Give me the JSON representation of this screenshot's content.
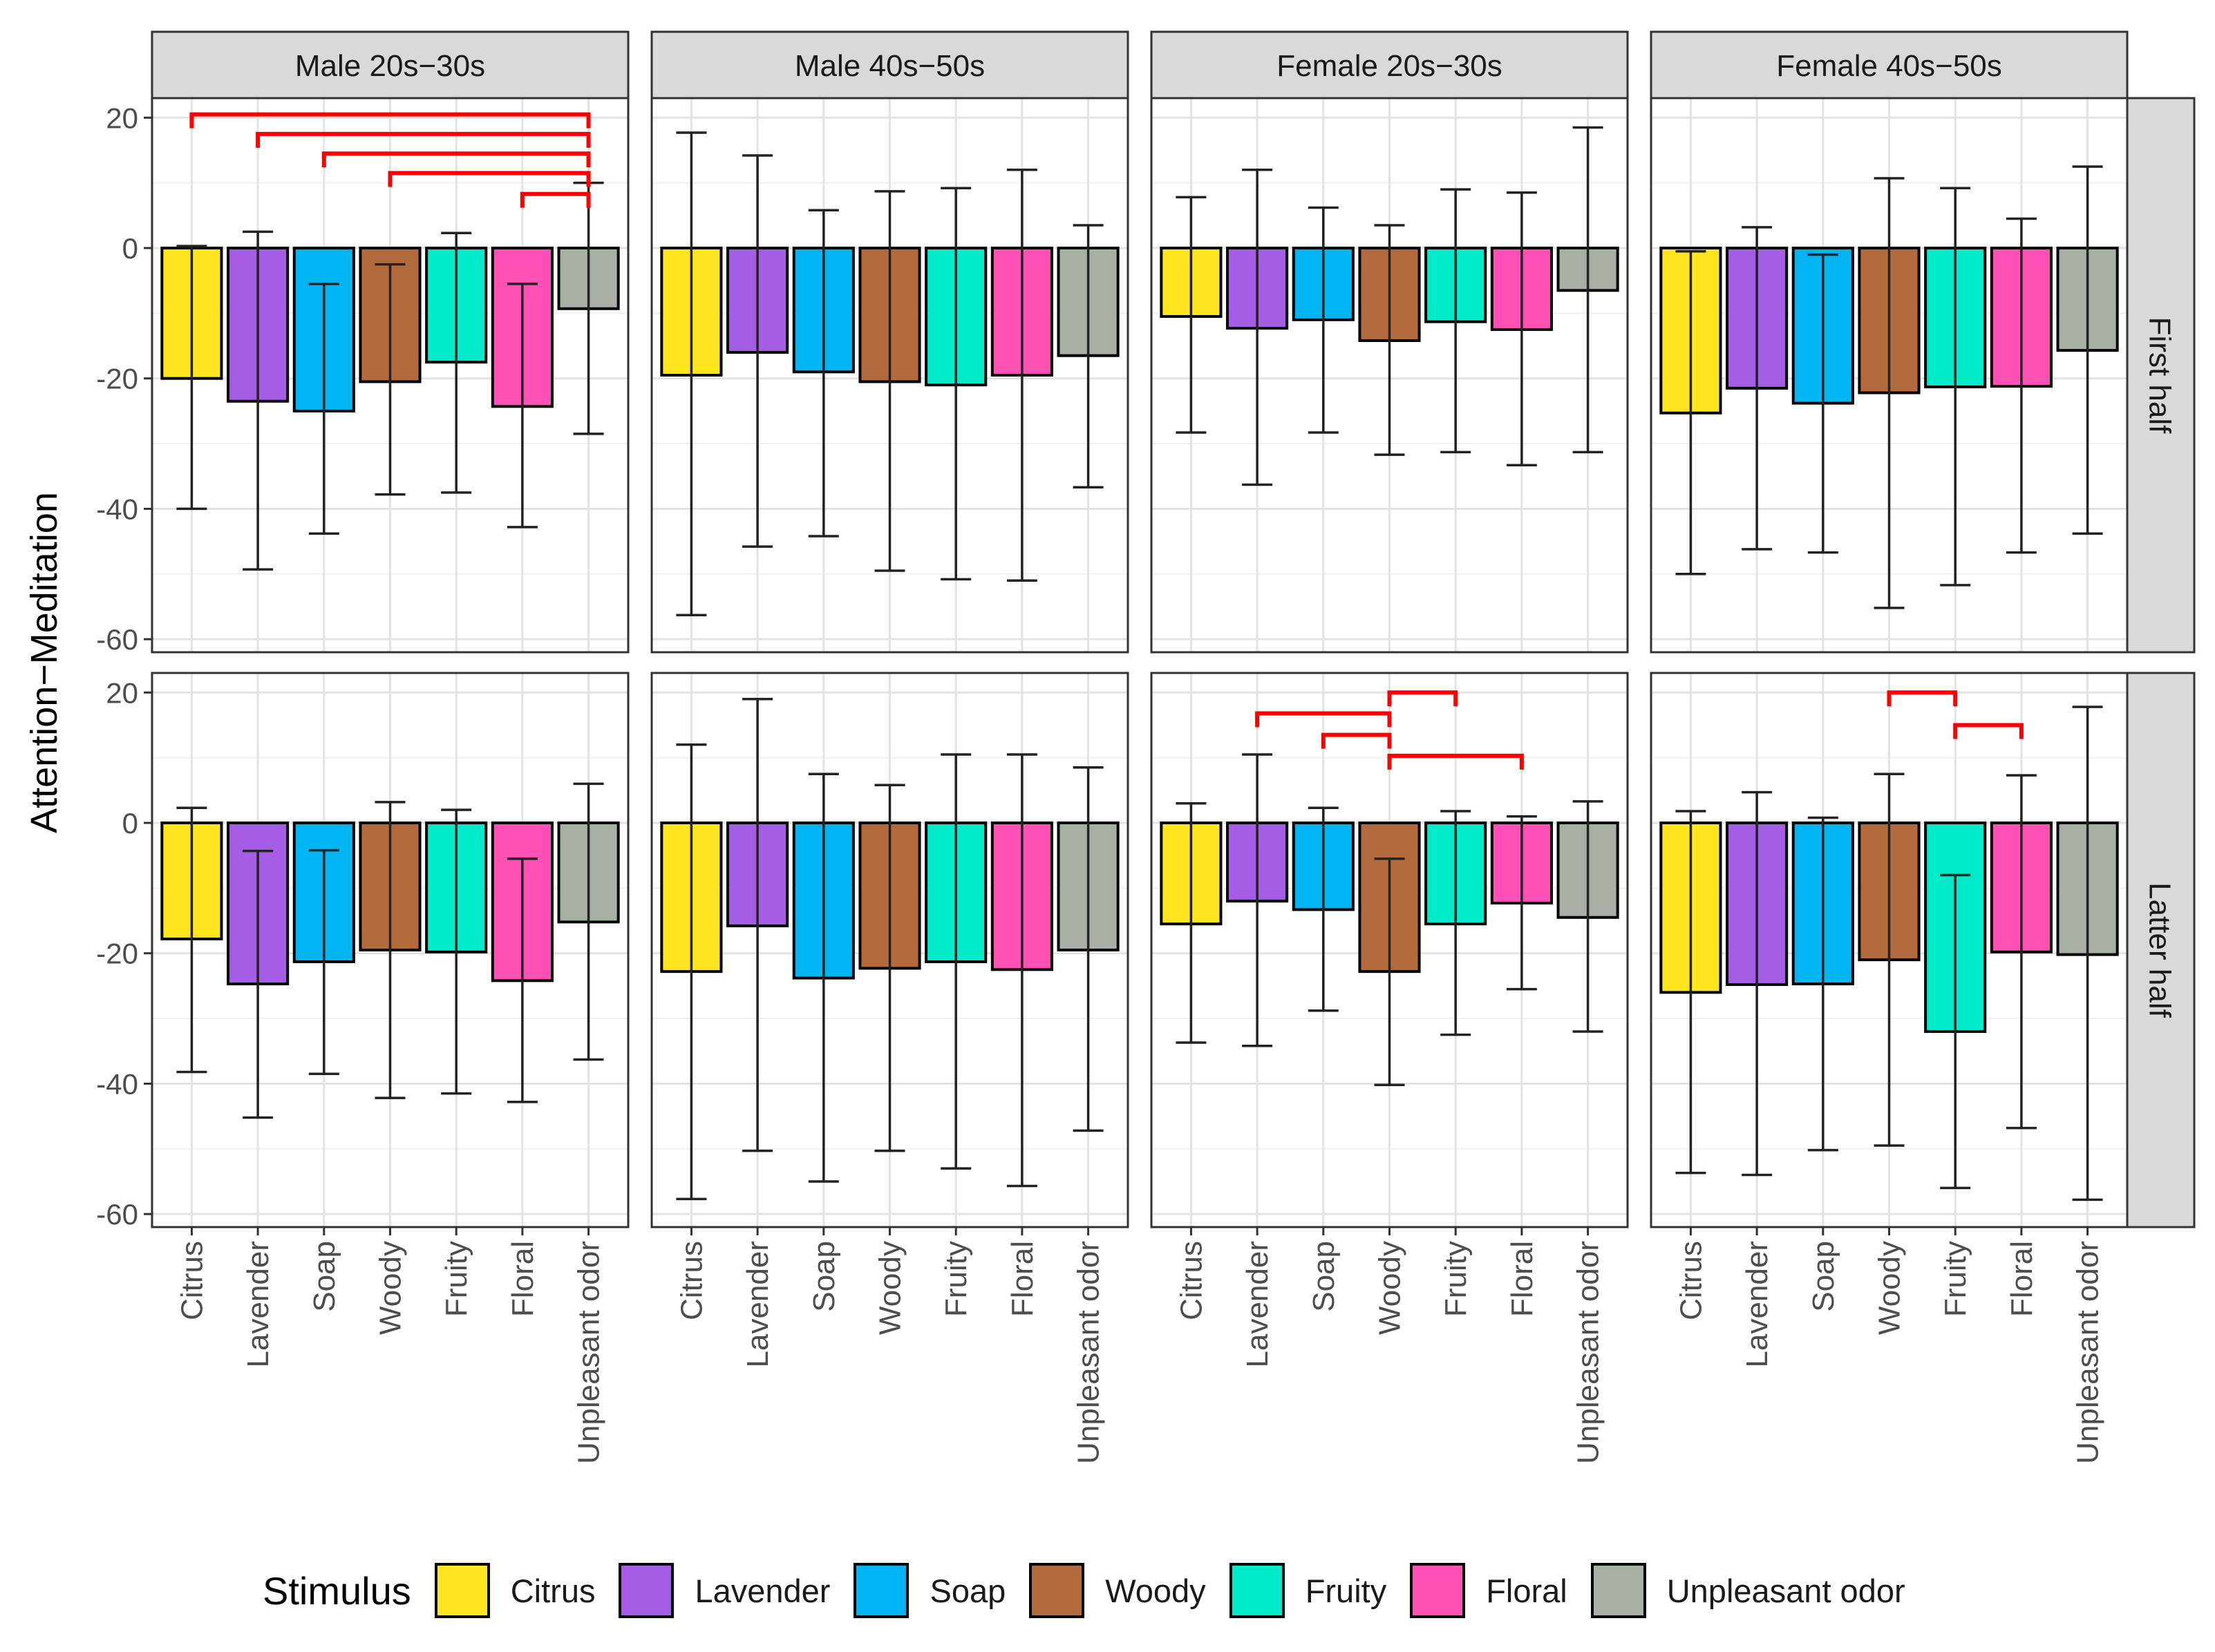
{
  "chart_data": {
    "type": "bar",
    "ylabel": "Attention−Meditation",
    "ylim": [
      -62,
      23
    ],
    "yticks": [
      20,
      0,
      -20,
      -40,
      -60
    ],
    "grid": true,
    "columns": [
      "Male 20s−30s",
      "Male 40s−50s",
      "Female 20s−30s",
      "Female 40s−50s"
    ],
    "rows": [
      "First half",
      "Latter half"
    ],
    "categories": [
      "Citrus",
      "Lavender",
      "Soap",
      "Woody",
      "Fruity",
      "Floral",
      "Unpleasant odor"
    ],
    "colors": [
      "#FFE51E",
      "#A65DE6",
      "#00B5F1",
      "#B36B3D",
      "#00EBC9",
      "#FF50B6",
      "#A8B0A5"
    ],
    "legend": {
      "title": "Stimulus",
      "position": "bottom"
    },
    "panels": [
      {
        "column": 0,
        "row": 0,
        "means": [
          -20,
          -23.5,
          -25,
          -20.5,
          -17.5,
          -24.3,
          -9.3
        ],
        "lower": [
          -40,
          -49.3,
          -43.8,
          -37.8,
          -37.5,
          -42.8,
          -28.5
        ],
        "upper": [
          0.3,
          2.5,
          -5.5,
          -2.5,
          2.3,
          -5.5,
          10
        ],
        "significance": [
          {
            "from": 0,
            "to": 6,
            "level": 20.5
          },
          {
            "from": 1,
            "to": 6,
            "level": 17.5
          },
          {
            "from": 2,
            "to": 6,
            "level": 14.5
          },
          {
            "from": 3,
            "to": 6,
            "level": 11.5
          },
          {
            "from": 5,
            "to": 6,
            "level": 8.3
          }
        ]
      },
      {
        "column": 1,
        "row": 0,
        "means": [
          -19.5,
          -16,
          -19,
          -20.5,
          -21,
          -19.5,
          -16.5
        ],
        "lower": [
          -56.3,
          -45.8,
          -44.2,
          -49.5,
          -50.8,
          -51,
          -36.7
        ],
        "upper": [
          17.7,
          14.2,
          5.8,
          8.7,
          9.2,
          12,
          3.5
        ],
        "significance": []
      },
      {
        "column": 2,
        "row": 0,
        "means": [
          -10.5,
          -12.3,
          -11,
          -14.2,
          -11.3,
          -12.5,
          -6.5
        ],
        "lower": [
          -28.3,
          -36.3,
          -28.3,
          -31.7,
          -31.3,
          -33.3,
          -31.3
        ],
        "upper": [
          7.8,
          12,
          6.2,
          3.5,
          9,
          8.5,
          18.5
        ],
        "significance": []
      },
      {
        "column": 3,
        "row": 0,
        "means": [
          -25.3,
          -21.5,
          -23.8,
          -22.2,
          -21.3,
          -21.2,
          -15.7
        ],
        "lower": [
          -50,
          -46.2,
          -46.7,
          -55.2,
          -51.7,
          -46.7,
          -43.8
        ],
        "upper": [
          -0.5,
          3.2,
          -1,
          10.7,
          9.2,
          4.5,
          12.5
        ],
        "significance": []
      },
      {
        "column": 0,
        "row": 1,
        "means": [
          -17.8,
          -24.7,
          -21.3,
          -19.5,
          -19.8,
          -24.2,
          -15.2
        ],
        "lower": [
          -38.2,
          -45.2,
          -38.5,
          -42.2,
          -41.5,
          -42.8,
          -36.3
        ],
        "upper": [
          2.3,
          -4.3,
          -4.2,
          3.2,
          2,
          -5.5,
          6
        ],
        "significance": []
      },
      {
        "column": 1,
        "row": 1,
        "means": [
          -22.8,
          -15.8,
          -23.8,
          -22.3,
          -21.3,
          -22.5,
          -19.5
        ],
        "lower": [
          -57.7,
          -50.3,
          -55,
          -50.3,
          -53,
          -55.7,
          -47.2
        ],
        "upper": [
          12,
          19,
          7.5,
          5.8,
          10.5,
          10.5,
          8.5
        ],
        "significance": []
      },
      {
        "column": 2,
        "row": 1,
        "means": [
          -15.5,
          -12,
          -13.3,
          -22.8,
          -15.5,
          -12.3,
          -14.5
        ],
        "lower": [
          -33.7,
          -34.2,
          -28.8,
          -40.2,
          -32.5,
          -25.5,
          -32
        ],
        "upper": [
          3,
          10.5,
          2.3,
          -5.5,
          1.8,
          1,
          3.3
        ],
        "significance": [
          {
            "from": 3,
            "to": 4,
            "level": 20
          },
          {
            "from": 1,
            "to": 3,
            "level": 16.8
          },
          {
            "from": 2,
            "to": 3,
            "level": 13.5
          },
          {
            "from": 3,
            "to": 5,
            "level": 10.3
          }
        ]
      },
      {
        "column": 3,
        "row": 1,
        "means": [
          -26,
          -24.8,
          -24.7,
          -21,
          -32,
          -19.8,
          -20.2
        ],
        "lower": [
          -53.7,
          -54,
          -50.2,
          -49.5,
          -56,
          -46.8,
          -57.8
        ],
        "upper": [
          1.8,
          4.7,
          0.8,
          7.5,
          -8,
          7.3,
          17.8
        ],
        "significance": [
          {
            "from": 3,
            "to": 4,
            "level": 20
          },
          {
            "from": 4,
            "to": 5,
            "level": 15
          }
        ]
      }
    ]
  }
}
